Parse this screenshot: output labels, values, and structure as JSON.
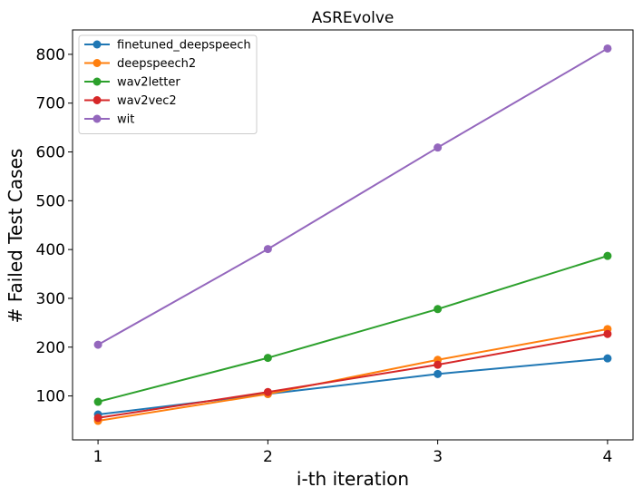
{
  "chart_data": {
    "type": "line",
    "title": "ASREvolve",
    "xlabel": "i-th iteration",
    "ylabel": "# Failed Test Cases",
    "x": [
      1,
      2,
      3,
      4
    ],
    "x_ticks": [
      "1",
      "2",
      "3",
      "4"
    ],
    "y_ticks": [
      "100",
      "200",
      "300",
      "400",
      "500",
      "600",
      "700",
      "800"
    ],
    "xlim": [
      0.85,
      4.15
    ],
    "ylim": [
      10,
      850
    ],
    "grid": false,
    "legend_position": "upper-left",
    "marker": "circle",
    "series": [
      {
        "name": "finetuned_deepspeech",
        "color": "#1f77b4",
        "values": [
          62,
          104,
          145,
          177
        ]
      },
      {
        "name": "deepspeech2",
        "color": "#ff7f0e",
        "values": [
          49,
          104,
          174,
          237
        ]
      },
      {
        "name": "wav2letter",
        "color": "#2ca02c",
        "values": [
          88,
          178,
          278,
          387
        ]
      },
      {
        "name": "wav2vec2",
        "color": "#d62728",
        "values": [
          55,
          108,
          164,
          227
        ]
      },
      {
        "name": "wit",
        "color": "#9467bd",
        "values": [
          205,
          401,
          609,
          812
        ]
      }
    ]
  }
}
